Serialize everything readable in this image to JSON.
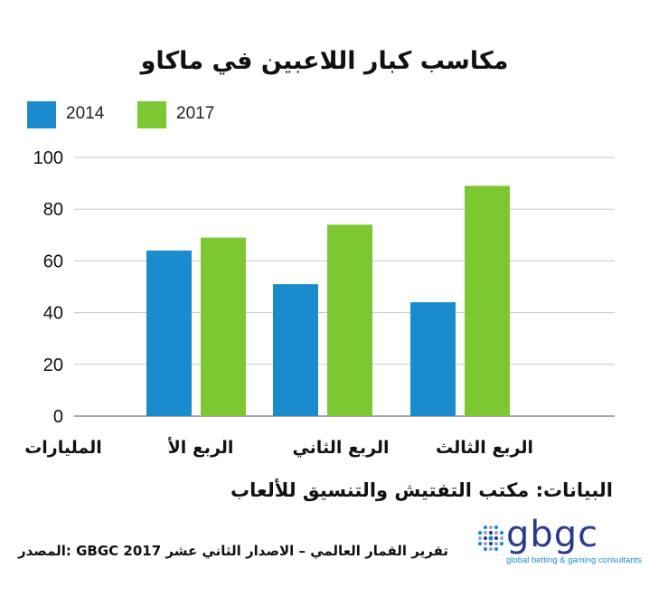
{
  "chart_data": {
    "type": "bar",
    "title": "مكاسب كبار اللاعبين في ماكاو",
    "categories": [
      "الربع الأ",
      "الربع الثاني",
      "الربع الثالث"
    ],
    "series": [
      {
        "name": "2014",
        "values": [
          64,
          51,
          44
        ],
        "color": "#1a8ccd"
      },
      {
        "name": "2017",
        "values": [
          69,
          74,
          89
        ],
        "color": "#7dc832"
      }
    ],
    "yticks": [
      0,
      20,
      40,
      60,
      80,
      100
    ],
    "ylim": [
      0,
      100
    ],
    "ylabel": "المليارات",
    "grid": true,
    "legend_position": "top-left"
  },
  "footer": {
    "data_source": "البيانات: مكتب التفتيش والتنسيق للألعاب",
    "source_line": "تقرير القمار العالمي – الاصدار الثاني عشر GBGC 2017 :المصدر"
  },
  "logo": {
    "wordmark": "gbgc",
    "tagline": "global betting & gaming consultants"
  }
}
